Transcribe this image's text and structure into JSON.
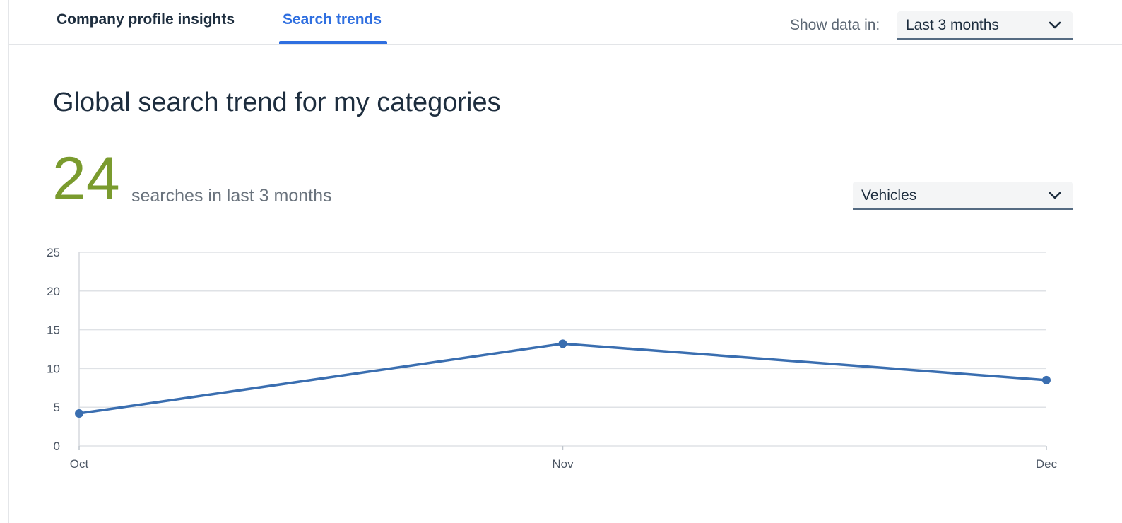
{
  "tabs": [
    {
      "label": "Company profile insights",
      "active": false
    },
    {
      "label": "Search trends",
      "active": true
    }
  ],
  "filter": {
    "label": "Show data in:",
    "period_value": "Last 3 months"
  },
  "section": {
    "title": "Global search trend for my categories",
    "kpi_value": "24",
    "kpi_label": "searches in last 3 months",
    "category_value": "Vehicles"
  },
  "colors": {
    "accent": "#2f6fe0",
    "kpi": "#7a9b2e",
    "series": "#3a6eb0",
    "grid": "#dfe2e6"
  },
  "icons": {
    "period_dropdown": "chevron-down-icon",
    "category_dropdown": "chevron-down-icon"
  },
  "chart_data": {
    "type": "line",
    "categories": [
      "Oct",
      "Nov",
      "Dec"
    ],
    "series": [
      {
        "values": [
          4.2,
          13.2,
          8.5
        ]
      }
    ],
    "yticks": [
      "0",
      "5",
      "10",
      "15",
      "20",
      "25"
    ],
    "ylim": [
      0,
      25
    ],
    "grid": true,
    "title": "",
    "xlabel": "",
    "ylabel": ""
  }
}
